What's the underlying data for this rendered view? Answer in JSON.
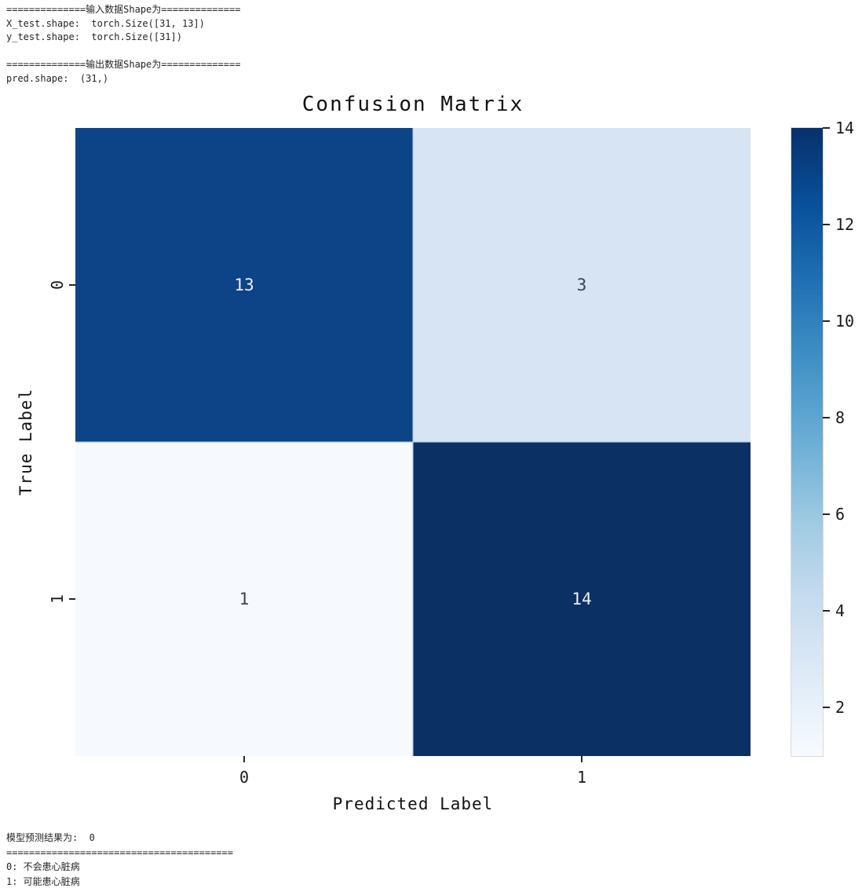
{
  "console_top": {
    "lines": [
      "==============输入数据Shape为==============",
      "X_test.shape:  torch.Size([31, 13])",
      "y_test.shape:  torch.Size([31])",
      "",
      "==============输出数据Shape为==============",
      "pred.shape:  (31,)"
    ]
  },
  "chart_data": {
    "type": "heatmap",
    "title": "Confusion Matrix",
    "xlabel": "Predicted Label",
    "ylabel": "True Label",
    "x_ticklabels": [
      "0",
      "1"
    ],
    "y_ticklabels": [
      "0",
      "1"
    ],
    "matrix": [
      [
        13,
        3
      ],
      [
        1,
        14
      ]
    ],
    "vmin": 1,
    "vmax": 14,
    "colormap": "Blues",
    "colorbar_ticks": [
      2,
      4,
      6,
      8,
      10,
      12,
      14
    ],
    "colormap_stops_top_to_bottom": [
      "#08306b",
      "#08519c",
      "#2171b5",
      "#4292c6",
      "#6baed6",
      "#9ecae1",
      "#c6dbef",
      "#deebf7",
      "#f7fbff"
    ],
    "cell_colors": [
      [
        "#0d4487",
        "#d7e4f3"
      ],
      [
        "#f6fafe",
        "#0b3064"
      ]
    ],
    "cell_text_colors": [
      [
        "#edf1f7",
        "#3b4450"
      ],
      [
        "#3b4450",
        "#edf1f7"
      ]
    ]
  },
  "console_bottom": {
    "lines": [
      "模型预测结果为:  0",
      "========================================",
      "0: 不会患心脏病",
      "1: 可能患心脏病"
    ]
  }
}
